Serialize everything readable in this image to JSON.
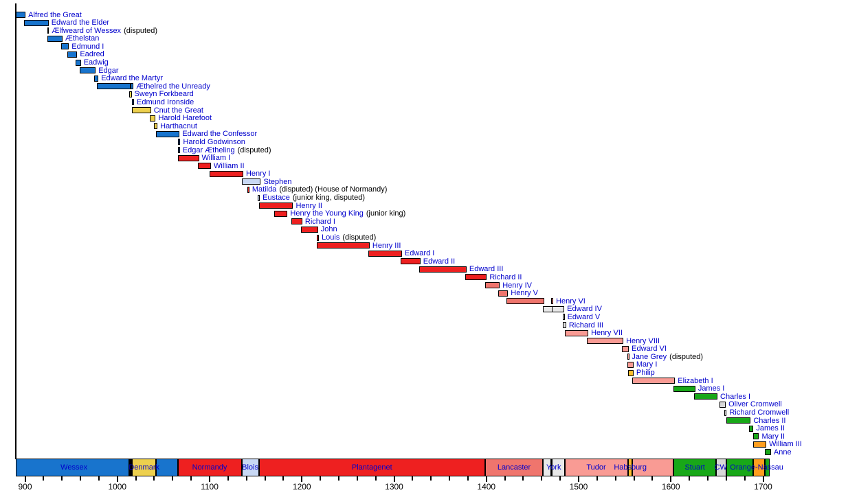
{
  "house_colors": {
    "Wessex": "#1874cd",
    "Denmark": "#edd04e",
    "Normandy": "#ee2020",
    "Blois": "#c8d8f4",
    "Plantagenet": "#ee2020",
    "Lancaster": "#ef756d",
    "York": "#e9e9e9",
    "Tudor": "#f99b94",
    "Habsburg": "#fdbe2c",
    "Stuart": "#18a818",
    "Commonwealth": "#d8d8d8",
    "Orange-Nassau": "#ff9e1e"
  },
  "text_colors": {
    "monarch_link": "#0000cc",
    "qualifier": "#000000",
    "tick_label": "#000000"
  },
  "chart_data": {
    "type": "timeline",
    "title": "",
    "xlabel": "",
    "axis": {
      "start_year": 890,
      "end_year": 1707,
      "major_tick_labels": [
        900,
        1000,
        1100,
        1200,
        1300,
        1400,
        1500,
        1600,
        1700
      ],
      "minor_tick_step": 20
    },
    "monarchs": [
      {
        "name": "Alfred the Great",
        "qualifier": "",
        "house": "Wessex",
        "segments": [
          [
            871,
            899
          ]
        ]
      },
      {
        "name": "Edward the Elder",
        "qualifier": "",
        "house": "Wessex",
        "segments": [
          [
            899,
            924
          ]
        ]
      },
      {
        "name": "Ælfweard of Wessex",
        "qualifier": "(disputed)",
        "house": "Wessex",
        "segments": [
          [
            924,
            924.5
          ]
        ]
      },
      {
        "name": "Æthelstan",
        "qualifier": "",
        "house": "Wessex",
        "segments": [
          [
            924,
            939
          ]
        ]
      },
      {
        "name": "Edmund I",
        "qualifier": "",
        "house": "Wessex",
        "segments": [
          [
            939,
            946
          ]
        ]
      },
      {
        "name": "Eadred",
        "qualifier": "",
        "house": "Wessex",
        "segments": [
          [
            946,
            955
          ]
        ]
      },
      {
        "name": "Eadwig",
        "qualifier": "",
        "house": "Wessex",
        "segments": [
          [
            955,
            959
          ]
        ]
      },
      {
        "name": "Edgar",
        "qualifier": "",
        "house": "Wessex",
        "segments": [
          [
            959,
            975
          ]
        ]
      },
      {
        "name": "Edward the Martyr",
        "qualifier": "",
        "house": "Wessex",
        "segments": [
          [
            975,
            978
          ]
        ]
      },
      {
        "name": "Æthelred the Unready",
        "qualifier": "",
        "house": "Wessex",
        "segments": [
          [
            978,
            1013
          ],
          [
            1014,
            1016
          ]
        ]
      },
      {
        "name": "Sweyn Forkbeard",
        "qualifier": "",
        "house": "Denmark",
        "segments": [
          [
            1013,
            1014
          ]
        ]
      },
      {
        "name": "Edmund Ironside",
        "qualifier": "",
        "house": "Wessex",
        "segments": [
          [
            1016,
            1016.6
          ]
        ]
      },
      {
        "name": "Cnut the Great",
        "qualifier": "",
        "house": "Denmark",
        "segments": [
          [
            1016,
            1035
          ]
        ]
      },
      {
        "name": "Harold Harefoot",
        "qualifier": "",
        "house": "Denmark",
        "segments": [
          [
            1035,
            1040
          ]
        ]
      },
      {
        "name": "Harthacnut",
        "qualifier": "",
        "house": "Denmark",
        "segments": [
          [
            1040,
            1042
          ]
        ]
      },
      {
        "name": "Edward the Confessor",
        "qualifier": "",
        "house": "Wessex",
        "segments": [
          [
            1042,
            1066
          ]
        ]
      },
      {
        "name": "Harold Godwinson",
        "qualifier": "",
        "house": "Wessex",
        "segments": [
          [
            1066,
            1066.8
          ]
        ]
      },
      {
        "name": "Edgar Ætheling",
        "qualifier": "(disputed)",
        "house": "Wessex",
        "segments": [
          [
            1066,
            1066.3
          ]
        ]
      },
      {
        "name": "William I",
        "qualifier": "",
        "house": "Normandy",
        "segments": [
          [
            1066,
            1087
          ]
        ]
      },
      {
        "name": "William II",
        "qualifier": "",
        "house": "Normandy",
        "segments": [
          [
            1087,
            1100
          ]
        ]
      },
      {
        "name": "Henry I",
        "qualifier": "",
        "house": "Normandy",
        "segments": [
          [
            1100,
            1135
          ]
        ]
      },
      {
        "name": "Stephen",
        "qualifier": "",
        "house": "Blois",
        "segments": [
          [
            1135,
            1154
          ]
        ]
      },
      {
        "name": "Matilda",
        "qualifier": "(disputed) (House of Normandy)",
        "house": "Normandy",
        "segments": [
          [
            1141,
            1141.6
          ]
        ]
      },
      {
        "name": "Eustace",
        "qualifier": "(junior king, disputed)",
        "house": "Blois",
        "segments": [
          [
            1152,
            1153
          ]
        ]
      },
      {
        "name": "Henry II",
        "qualifier": "",
        "house": "Plantagenet",
        "segments": [
          [
            1154,
            1189
          ]
        ]
      },
      {
        "name": "Henry the Young King",
        "qualifier": "(junior king)",
        "house": "Plantagenet",
        "segments": [
          [
            1170,
            1183
          ]
        ]
      },
      {
        "name": "Richard I",
        "qualifier": "",
        "house": "Plantagenet",
        "segments": [
          [
            1189,
            1199
          ]
        ]
      },
      {
        "name": "John",
        "qualifier": "",
        "house": "Plantagenet",
        "segments": [
          [
            1199,
            1216
          ]
        ]
      },
      {
        "name": "Louis",
        "qualifier": "(disputed)",
        "house": "Plantagenet",
        "segments": [
          [
            1216,
            1217
          ]
        ]
      },
      {
        "name": "Henry III",
        "qualifier": "",
        "house": "Plantagenet",
        "segments": [
          [
            1216,
            1272
          ]
        ]
      },
      {
        "name": "Edward I",
        "qualifier": "",
        "house": "Plantagenet",
        "segments": [
          [
            1272,
            1307
          ]
        ]
      },
      {
        "name": "Edward II",
        "qualifier": "",
        "house": "Plantagenet",
        "segments": [
          [
            1307,
            1327
          ]
        ]
      },
      {
        "name": "Edward III",
        "qualifier": "",
        "house": "Plantagenet",
        "segments": [
          [
            1327,
            1377
          ]
        ]
      },
      {
        "name": "Richard II",
        "qualifier": "",
        "house": "Plantagenet",
        "segments": [
          [
            1377,
            1399
          ]
        ]
      },
      {
        "name": "Henry IV",
        "qualifier": "",
        "house": "Lancaster",
        "segments": [
          [
            1399,
            1413
          ]
        ]
      },
      {
        "name": "Henry V",
        "qualifier": "",
        "house": "Lancaster",
        "segments": [
          [
            1413,
            1422
          ]
        ]
      },
      {
        "name": "Henry VI",
        "qualifier": "",
        "house": "Lancaster",
        "segments": [
          [
            1422,
            1461
          ],
          [
            1470,
            1471
          ]
        ]
      },
      {
        "name": "Edward IV",
        "qualifier": "",
        "house": "York",
        "segments": [
          [
            1461,
            1470
          ],
          [
            1471,
            1483
          ]
        ]
      },
      {
        "name": "Edward V",
        "qualifier": "",
        "house": "York",
        "segments": [
          [
            1483,
            1483.3
          ]
        ]
      },
      {
        "name": "Richard III",
        "qualifier": "",
        "house": "York",
        "segments": [
          [
            1483,
            1485
          ]
        ]
      },
      {
        "name": "Henry VII",
        "qualifier": "",
        "house": "Tudor",
        "segments": [
          [
            1485,
            1509
          ]
        ]
      },
      {
        "name": "Henry VIII",
        "qualifier": "",
        "house": "Tudor",
        "segments": [
          [
            1509,
            1547
          ]
        ]
      },
      {
        "name": "Edward VI",
        "qualifier": "",
        "house": "Tudor",
        "segments": [
          [
            1547,
            1553
          ]
        ]
      },
      {
        "name": "Jane Grey",
        "qualifier": "(disputed)",
        "house": "Tudor",
        "segments": [
          [
            1553,
            1553.2
          ]
        ]
      },
      {
        "name": "Mary I",
        "qualifier": "",
        "house": "Tudor",
        "segments": [
          [
            1553,
            1558
          ]
        ]
      },
      {
        "name": "Philip",
        "qualifier": "",
        "house": "Habsburg",
        "segments": [
          [
            1554,
            1558
          ]
        ]
      },
      {
        "name": "Elizabeth I",
        "qualifier": "",
        "house": "Tudor",
        "segments": [
          [
            1558,
            1603
          ]
        ]
      },
      {
        "name": "James I",
        "qualifier": "",
        "house": "Stuart",
        "segments": [
          [
            1603,
            1625
          ]
        ]
      },
      {
        "name": "Charles I",
        "qualifier": "",
        "house": "Stuart",
        "segments": [
          [
            1625,
            1649
          ]
        ]
      },
      {
        "name": "Oliver Cromwell",
        "qualifier": "",
        "house": "Commonwealth",
        "segments": [
          [
            1653,
            1658
          ]
        ]
      },
      {
        "name": "Richard Cromwell",
        "qualifier": "",
        "house": "Commonwealth",
        "segments": [
          [
            1658,
            1659
          ]
        ]
      },
      {
        "name": "Charles II",
        "qualifier": "",
        "house": "Stuart",
        "segments": [
          [
            1660,
            1685
          ]
        ]
      },
      {
        "name": "James II",
        "qualifier": "",
        "house": "Stuart",
        "segments": [
          [
            1685,
            1688
          ]
        ]
      },
      {
        "name": "Mary II",
        "qualifier": "",
        "house": "Stuart",
        "segments": [
          [
            1689,
            1694
          ]
        ]
      },
      {
        "name": "William III",
        "qualifier": "",
        "house": "Orange-Nassau",
        "segments": [
          [
            1689,
            1702
          ]
        ]
      },
      {
        "name": "Anne",
        "qualifier": "",
        "house": "Stuart",
        "segments": [
          [
            1702,
            1714
          ]
        ]
      }
    ],
    "band_segments": [
      {
        "house": "Wessex",
        "start": 890,
        "end": 1013
      },
      {
        "house": "Denmark",
        "start": 1013,
        "end": 1014
      },
      {
        "house": "Wessex",
        "start": 1014,
        "end": 1016
      },
      {
        "house": "Denmark",
        "start": 1016,
        "end": 1042
      },
      {
        "house": "Wessex",
        "start": 1042,
        "end": 1066
      },
      {
        "house": "Normandy",
        "start": 1066,
        "end": 1135
      },
      {
        "house": "Blois",
        "start": 1135,
        "end": 1154
      },
      {
        "house": "Plantagenet",
        "start": 1154,
        "end": 1399
      },
      {
        "house": "Lancaster",
        "start": 1399,
        "end": 1461
      },
      {
        "house": "York",
        "start": 1461,
        "end": 1470
      },
      {
        "house": "Lancaster",
        "start": 1470,
        "end": 1471
      },
      {
        "house": "York",
        "start": 1471,
        "end": 1485
      },
      {
        "house": "Tudor",
        "start": 1485,
        "end": 1554
      },
      {
        "house": "Habsburg",
        "start": 1554,
        "end": 1558
      },
      {
        "house": "Tudor",
        "start": 1558,
        "end": 1603
      },
      {
        "house": "Stuart",
        "start": 1603,
        "end": 1649
      },
      {
        "house": "Commonwealth",
        "start": 1649,
        "end": 1660
      },
      {
        "house": "Stuart",
        "start": 1660,
        "end": 1689
      },
      {
        "house": "Orange-Nassau",
        "start": 1689,
        "end": 1702
      },
      {
        "house": "Stuart",
        "start": 1702,
        "end": 1707
      }
    ],
    "band_labels": [
      {
        "text": "Wessex",
        "center_year": 953
      },
      {
        "text": "Denmark",
        "center_year": 1029
      },
      {
        "text": "Normandy",
        "center_year": 1100
      },
      {
        "text": "Blois",
        "center_year": 1144
      },
      {
        "text": "Plantagenet",
        "center_year": 1276
      },
      {
        "text": "Lancaster",
        "center_year": 1430
      },
      {
        "text": "York",
        "center_year": 1473
      },
      {
        "text": "Tudor",
        "center_year": 1519
      },
      {
        "text": "Habsburg",
        "center_year": 1556
      },
      {
        "text": "Stuart",
        "center_year": 1626
      },
      {
        "text": "CW",
        "center_year": 1654
      },
      {
        "text": "Orange-Nassau",
        "center_year": 1693
      }
    ]
  }
}
